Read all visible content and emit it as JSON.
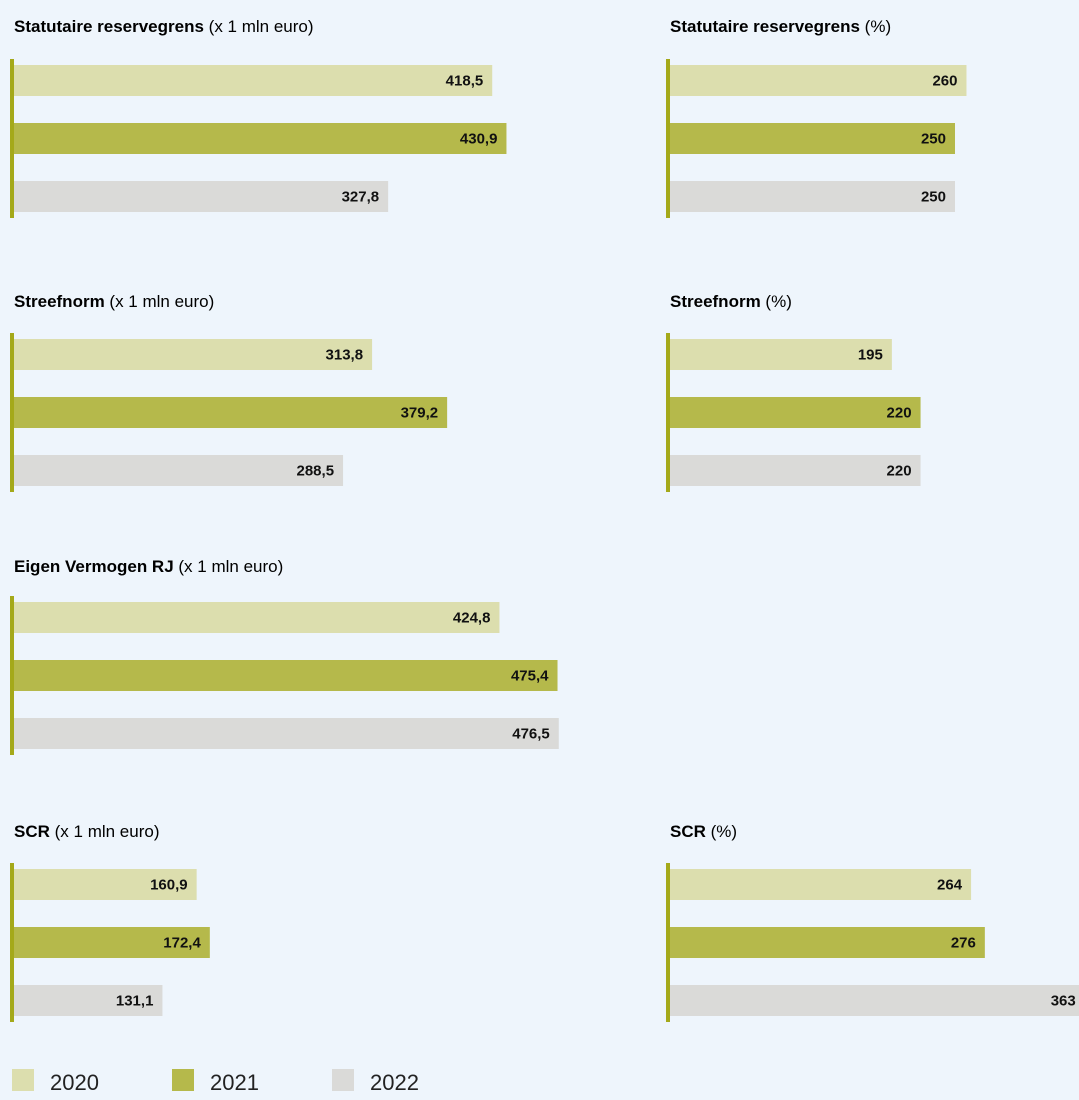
{
  "colors": {
    "y2020": "#dcdeae",
    "y2021": "#b5b94b",
    "y2022": "#dadad8",
    "axis": "#a4a91a",
    "background": "#eef5fc"
  },
  "legend": [
    "2020",
    "2021",
    "2022"
  ],
  "chart_data": [
    {
      "type": "bar",
      "title": "Statutaire reservegrens",
      "unit": "(x 1 mln euro)",
      "categories": [
        "2020",
        "2021",
        "2022"
      ],
      "values": [
        418.5,
        430.9,
        327.8
      ],
      "labels": [
        "418,5",
        "430,9",
        "327,8"
      ]
    },
    {
      "type": "bar",
      "title": "Statutaire reservegrens",
      "unit": "(%)",
      "categories": [
        "2020",
        "2021",
        "2022"
      ],
      "values": [
        260,
        250,
        250
      ],
      "labels": [
        "260",
        "250",
        "250"
      ]
    },
    {
      "type": "bar",
      "title": "Streefnorm",
      "unit": "(x 1 mln euro)",
      "categories": [
        "2020",
        "2021",
        "2022"
      ],
      "values": [
        313.8,
        379.2,
        288.5
      ],
      "labels": [
        "313,8",
        "379,2",
        "288,5"
      ]
    },
    {
      "type": "bar",
      "title": "Streefnorm",
      "unit": "(%)",
      "categories": [
        "2020",
        "2021",
        "2022"
      ],
      "values": [
        195,
        220,
        220
      ],
      "labels": [
        "195",
        "220",
        "220"
      ]
    },
    {
      "type": "bar",
      "title": "Eigen Vermogen RJ",
      "unit": "(x 1 mln euro)",
      "categories": [
        "2020",
        "2021",
        "2022"
      ],
      "values": [
        424.8,
        475.4,
        476.5
      ],
      "labels": [
        "424,8",
        "475,4",
        "476,5"
      ]
    },
    {
      "type": "bar",
      "title": "SCR",
      "unit": "(x 1 mln euro)",
      "categories": [
        "2020",
        "2021",
        "2022"
      ],
      "values": [
        160.9,
        172.4,
        131.1
      ],
      "labels": [
        "160,9",
        "172,4",
        "131,1"
      ]
    },
    {
      "type": "bar",
      "title": "SCR",
      "unit": "(%)",
      "categories": [
        "2020",
        "2021",
        "2022"
      ],
      "values": [
        264,
        276,
        363
      ],
      "labels": [
        "264",
        "276",
        "363"
      ]
    }
  ]
}
